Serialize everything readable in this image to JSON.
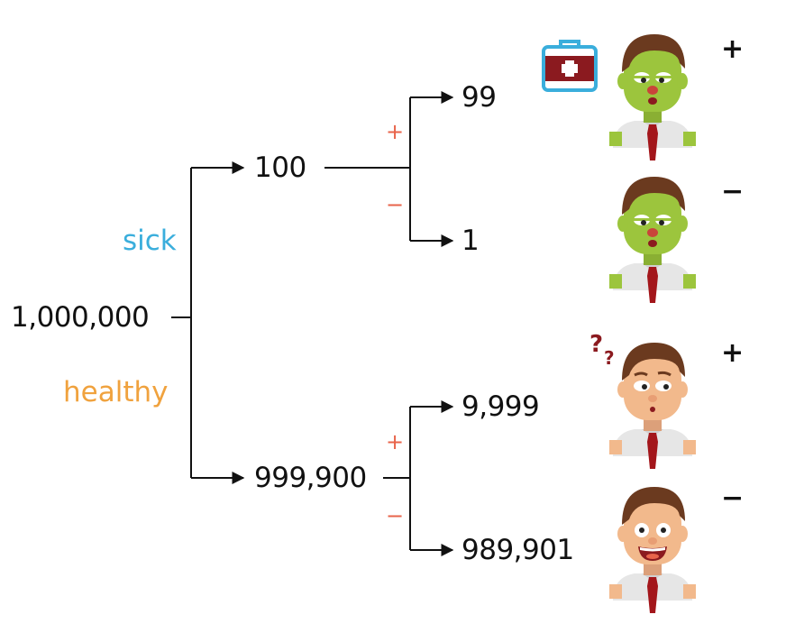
{
  "tree": {
    "root": {
      "label": "1,000,000"
    },
    "branches": [
      {
        "name": "sick",
        "color": "#3aaedc"
      },
      {
        "name": "healthy",
        "color": "#f0a23e"
      }
    ],
    "level1": [
      {
        "label": "100"
      },
      {
        "label": "999,900"
      }
    ],
    "level2": [
      {
        "label": "99",
        "test_sign": "+",
        "person": "sick-patient"
      },
      {
        "label": "1",
        "test_sign": "−",
        "person": "sick-patient"
      },
      {
        "label": "9,999",
        "test_sign": "+",
        "person": "confused-healthy-patient"
      },
      {
        "label": "989,901",
        "test_sign": "−",
        "person": "happy-healthy-patient"
      }
    ],
    "test_markers": {
      "positive": "+",
      "negative": "−"
    }
  },
  "icons": {
    "first_aid_kit": "first-aid-kit-icon",
    "question_marks": "??"
  },
  "colors": {
    "line": "#111111",
    "sign_red": "#e8644b",
    "sick_skin": "#9cc53d",
    "healthy_skin": "#f2b98c",
    "hair": "#6b3a1f",
    "shirt": "#e6e6e6",
    "tie": "#a3161b",
    "kit_red": "#8b1a1f",
    "kit_blue": "#3aaedc"
  }
}
